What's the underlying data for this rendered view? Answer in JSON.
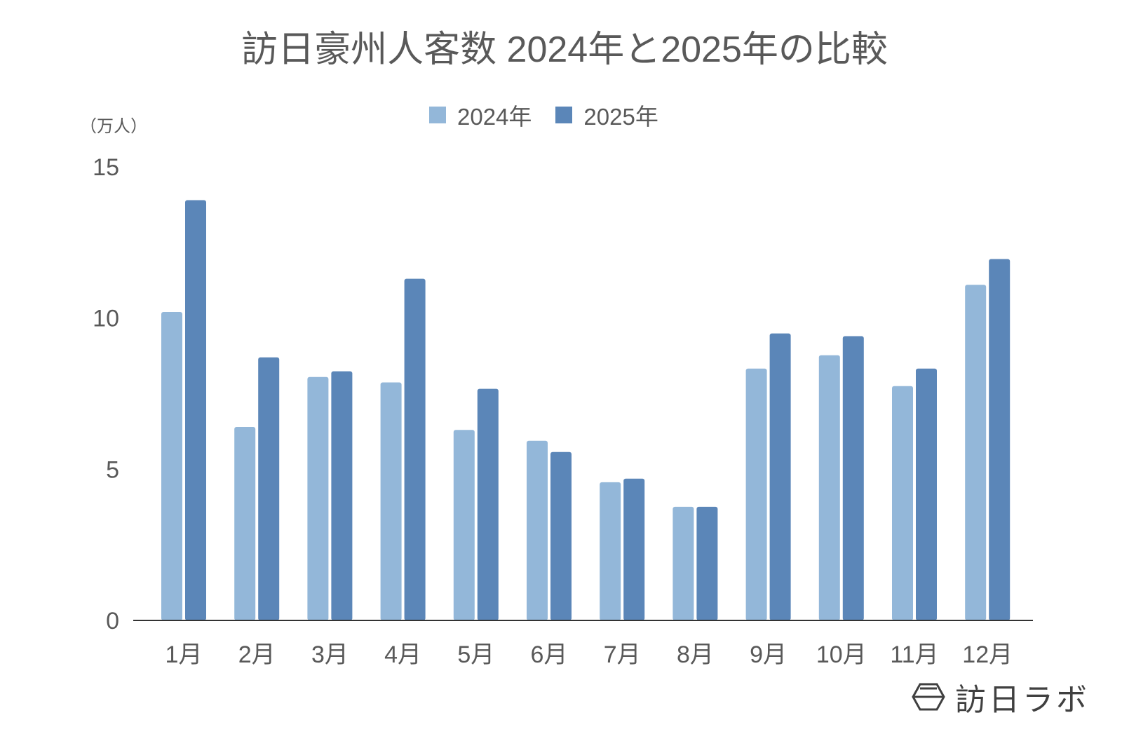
{
  "title": "訪日豪州人客数 2024年と2025年の比較",
  "unit_label": "（万人）",
  "legend": [
    {
      "label": "2024年",
      "color": "#93b7d9"
    },
    {
      "label": "2025年",
      "color": "#5b86b8"
    }
  ],
  "logo": {
    "icon": "hexagon-logo-icon",
    "text": "訪日ラボ"
  },
  "chart_data": {
    "type": "bar",
    "title": "訪日豪州人客数 2024年と2025年の比較",
    "xlabel": "",
    "ylabel": "（万人）",
    "ylim": [
      0,
      15
    ],
    "yticks": [
      0,
      5,
      10,
      15
    ],
    "grid": false,
    "legend_position": "top",
    "categories": [
      "1月",
      "2月",
      "3月",
      "4月",
      "5月",
      "6月",
      "7月",
      "8月",
      "9月",
      "10月",
      "11月",
      "12月"
    ],
    "series": [
      {
        "name": "2024年",
        "color": "#93b7d9",
        "values": [
          10.2,
          6.4,
          8.05,
          7.87,
          6.3,
          5.94,
          4.57,
          3.76,
          8.33,
          8.77,
          7.75,
          11.1
        ]
      },
      {
        "name": "2025年",
        "color": "#5b86b8",
        "values": [
          13.9,
          8.7,
          8.24,
          11.3,
          7.66,
          5.57,
          4.69,
          3.76,
          9.49,
          9.4,
          8.33,
          11.95
        ]
      }
    ]
  }
}
